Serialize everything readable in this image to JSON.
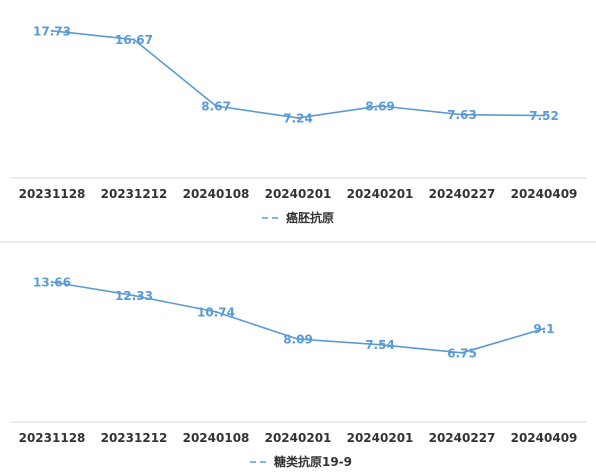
{
  "chart_data": [
    {
      "type": "line",
      "categories": [
        "20231128",
        "20231212",
        "20240108",
        "20240201",
        "20240201",
        "20240227",
        "20240409"
      ],
      "series": [
        {
          "name": "癌胚抗原",
          "values": [
            17.73,
            16.67,
            8.67,
            7.24,
            8.69,
            7.63,
            7.52
          ]
        }
      ],
      "data_labels": [
        "17.73",
        "16.67",
        "8.67",
        "7.24",
        "8.69",
        "7.63",
        "7.52"
      ],
      "ylim": [
        0,
        20
      ],
      "grid": false,
      "legend": "bottom",
      "line_style": "solid",
      "color": "#5b9bd5"
    },
    {
      "type": "line",
      "categories": [
        "20231128",
        "20231212",
        "20240108",
        "20240201",
        "20240201",
        "20240227",
        "20240409"
      ],
      "series": [
        {
          "name": "糖类抗原19-9",
          "values": [
            13.66,
            12.33,
            10.74,
            8.09,
            7.54,
            6.75,
            9.1
          ]
        }
      ],
      "data_labels": [
        "13.66",
        "12.33",
        "10.74",
        "8.09",
        "7.54",
        "6.75",
        "9.1"
      ],
      "ylim": [
        0,
        16
      ],
      "grid": false,
      "legend": "bottom",
      "line_style": "solid",
      "color": "#5b9bd5"
    }
  ]
}
